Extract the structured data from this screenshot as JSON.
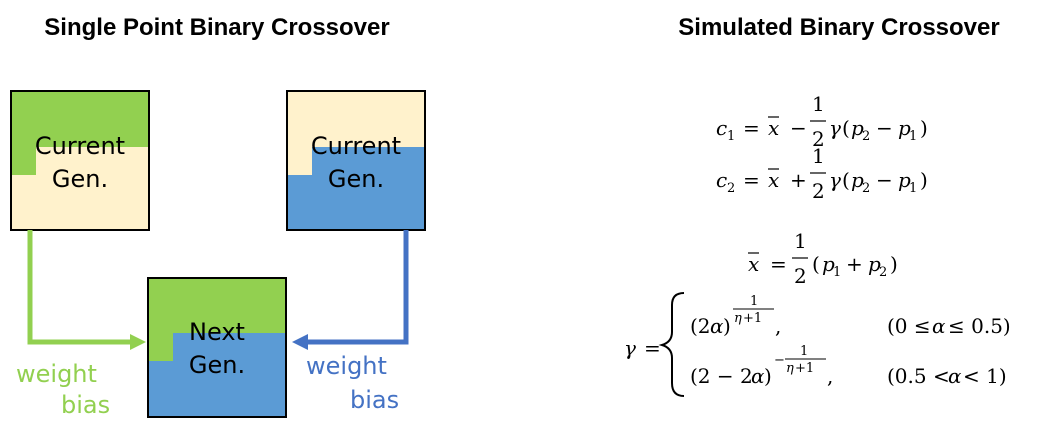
{
  "left_title": "Single Point Binary Crossover",
  "right_title": "Simulated Binary Crossover",
  "boxes": {
    "left_parent": {
      "line1": "Current",
      "line2": "Gen."
    },
    "right_parent": {
      "line1": "Current",
      "line2": "Gen."
    },
    "child": {
      "line1": "Next",
      "line2": "Gen."
    }
  },
  "left_weight": {
    "line1": "weight",
    "line2": "bias"
  },
  "right_weight": {
    "line1": "weight",
    "line2": "bias"
  },
  "colors": {
    "green": "#92D050",
    "blue": "#5B9BD5",
    "cream": "#FFF2CC",
    "arrow_green": "#92D050",
    "arrow_blue": "#4472C4",
    "weight_green": "#92D050",
    "weight_blue": "#4472C4"
  },
  "equations": {
    "c1": "c₁ = x̄ − (1/2) γ (p₂ − p₁)",
    "c2": "c₂ = x̄ + (1/2) γ (p₂ − p₁)",
    "xbar": "x̄ = (1/2) (p₁ + p₂)",
    "gamma_case1": "(2α)^(1/(η+1)),   (0 ≤ α ≤ 0.5)",
    "gamma_case2": "(2 − 2α)^(−1/(η+1)),   (0.5 < α < 1)"
  }
}
